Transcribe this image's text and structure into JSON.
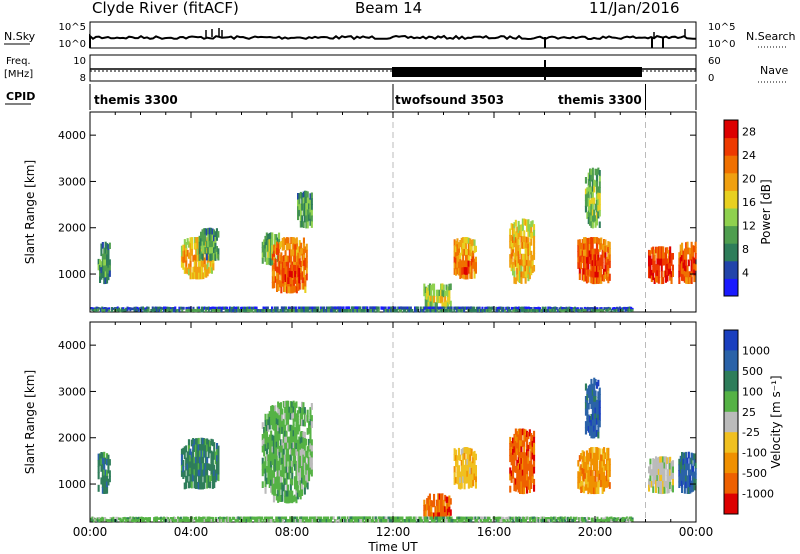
{
  "header": {
    "station": "Clyde River (fitACF)",
    "beam": "Beam 14",
    "date": "11/Jan/2016"
  },
  "noise_panel": {
    "left_label": "N.Sky",
    "left_ticks": [
      "10^5",
      "10^0"
    ],
    "right_ticks": [
      "10^5",
      "10^0"
    ],
    "right_label": "N.Search"
  },
  "freq_panel": {
    "left_label_line1": "Freq.",
    "left_label_line2": "[MHz]",
    "left_ticks": [
      "10",
      "8"
    ],
    "right_ticks": [
      "60",
      "0"
    ],
    "right_label": "Nave"
  },
  "cpid_panel": {
    "label": "CPID",
    "segments": [
      {
        "name": "themis 3300",
        "start_h": 0,
        "end_h": 12
      },
      {
        "name": "twofsound 3503",
        "start_h": 12,
        "end_h": 22
      },
      {
        "name": "themis 3300",
        "start_h": 22,
        "end_h": 24
      }
    ],
    "segment_labels": [
      "themis 3300",
      "twofsound 3503",
      "themis 3300"
    ]
  },
  "colors": {
    "power_scale": [
      "#1a1aff",
      "#2244aa",
      "#2e7d5a",
      "#4f9e4f",
      "#8fd14f",
      "#e8d020",
      "#f0a010",
      "#f07000",
      "#ee3a00",
      "#dd0000"
    ],
    "velocity_scale": [
      "#1a3fbf",
      "#2a62a8",
      "#2e7d5a",
      "#55b245",
      "#bbbbbb",
      "#f0c020",
      "#f09000",
      "#ee6000",
      "#dd0000"
    ]
  },
  "chart_data": [
    {
      "type": "heatmap",
      "title": "",
      "xlabel": "",
      "ylabel": "Slant Range [km]",
      "x_ticks": [
        "00:00",
        "04:00",
        "08:00",
        "12:00",
        "16:00",
        "20:00",
        "00:00"
      ],
      "y_ticks": [
        "1000",
        "2000",
        "3000",
        "4000"
      ],
      "xlim_h": [
        0,
        24
      ],
      "ylim_km": [
        180,
        4500
      ],
      "colorbar": {
        "label": "Power [dB]",
        "ticks": [
          "4",
          "8",
          "12",
          "16",
          "20",
          "24",
          "28"
        ],
        "range": [
          0,
          30
        ]
      },
      "patches": [
        {
          "t0": 0.3,
          "t1": 0.8,
          "r0": 800,
          "r1": 1700,
          "v": 10
        },
        {
          "t0": 3.6,
          "t1": 4.9,
          "r0": 900,
          "r1": 1800,
          "v": 20
        },
        {
          "t0": 4.3,
          "t1": 5.1,
          "r0": 1300,
          "r1": 2000,
          "v": 12
        },
        {
          "t0": 6.8,
          "t1": 7.5,
          "r0": 1200,
          "r1": 1900,
          "v": 14
        },
        {
          "t0": 7.2,
          "t1": 8.6,
          "r0": 600,
          "r1": 1800,
          "v": 24
        },
        {
          "t0": 7.6,
          "t1": 8.3,
          "r0": 800,
          "r1": 1200,
          "v": 28
        },
        {
          "t0": 8.2,
          "t1": 8.8,
          "r0": 2000,
          "r1": 2800,
          "v": 12
        },
        {
          "t0": 14.4,
          "t1": 15.3,
          "r0": 900,
          "r1": 1800,
          "v": 22
        },
        {
          "t0": 14.7,
          "t1": 15.0,
          "r0": 1000,
          "r1": 1300,
          "v": 28
        },
        {
          "t0": 16.6,
          "t1": 17.6,
          "r0": 800,
          "r1": 2200,
          "v": 20
        },
        {
          "t0": 19.3,
          "t1": 20.6,
          "r0": 800,
          "r1": 1800,
          "v": 26
        },
        {
          "t0": 19.6,
          "t1": 20.2,
          "r0": 2000,
          "r1": 3300,
          "v": 14
        },
        {
          "t0": 22.1,
          "t1": 23.1,
          "r0": 800,
          "r1": 1600,
          "v": 28
        },
        {
          "t0": 23.3,
          "t1": 24.0,
          "r0": 800,
          "r1": 1700,
          "v": 26
        },
        {
          "t0": 13.2,
          "t1": 14.3,
          "r0": 250,
          "r1": 800,
          "v": 16
        },
        {
          "t0": 0.0,
          "t1": 21.5,
          "r0": 190,
          "r1": 300,
          "v": 8
        }
      ]
    },
    {
      "type": "heatmap",
      "title": "",
      "xlabel": "Time UT",
      "ylabel": "Slant Range [km]",
      "x_ticks": [
        "00:00",
        "04:00",
        "08:00",
        "12:00",
        "16:00",
        "20:00",
        "00:00"
      ],
      "y_ticks": [
        "1000",
        "2000",
        "3000",
        "4000"
      ],
      "xlim_h": [
        0,
        24
      ],
      "ylim_km": [
        180,
        4500
      ],
      "colorbar": {
        "label": "Velocity [m s⁻¹]",
        "ticks": [
          "1000",
          "500",
          "100",
          "25",
          "-25",
          "-100",
          "-500",
          "-1000"
        ]
      },
      "patches": [
        {
          "t0": 0.3,
          "t1": 0.8,
          "r0": 800,
          "r1": 1700,
          "v": 2
        },
        {
          "t0": 3.6,
          "t1": 5.1,
          "r0": 900,
          "r1": 2000,
          "v": 2
        },
        {
          "t0": 6.8,
          "t1": 8.8,
          "r0": 600,
          "r1": 2800,
          "v": 3
        },
        {
          "t0": 14.4,
          "t1": 15.3,
          "r0": 900,
          "r1": 1800,
          "v": 5
        },
        {
          "t0": 16.6,
          "t1": 17.6,
          "r0": 800,
          "r1": 2200,
          "v": 7
        },
        {
          "t0": 19.3,
          "t1": 20.6,
          "r0": 800,
          "r1": 1800,
          "v": 6
        },
        {
          "t0": 19.6,
          "t1": 20.2,
          "r0": 2000,
          "r1": 3300,
          "v": 1
        },
        {
          "t0": 22.1,
          "t1": 23.1,
          "r0": 800,
          "r1": 1600,
          "v": 4
        },
        {
          "t0": 23.3,
          "t1": 24.0,
          "r0": 800,
          "r1": 1700,
          "v": 1
        },
        {
          "t0": 13.2,
          "t1": 14.3,
          "r0": 250,
          "r1": 800,
          "v": 7
        },
        {
          "t0": 0.0,
          "t1": 21.5,
          "r0": 190,
          "r1": 300,
          "v": 3
        }
      ]
    }
  ]
}
